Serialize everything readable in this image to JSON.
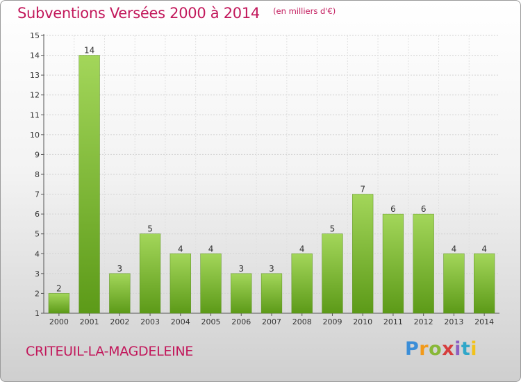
{
  "title": "Subventions Versées 2000 à 2014",
  "subtitle": "(en milliers d'€)",
  "commune": "CRITEUIL-LA-MAGDELEINE",
  "logo_text": "Proxiti",
  "colors": {
    "accent": "#c2185b",
    "bar_light": "#a3d65a",
    "bar_dark": "#5c9a18"
  },
  "chart_data": {
    "type": "bar",
    "categories": [
      "2000",
      "2001",
      "2002",
      "2003",
      "2004",
      "2005",
      "2006",
      "2007",
      "2008",
      "2009",
      "2010",
      "2011",
      "2012",
      "2013",
      "2014"
    ],
    "values": [
      2,
      14,
      3,
      5,
      4,
      4,
      3,
      3,
      4,
      5,
      7,
      6,
      6,
      4,
      4
    ],
    "title": "Subventions Versées 2000 à 2014",
    "ylabel": "(en milliers d'€)",
    "ylim": [
      1,
      15
    ],
    "yticks": [
      1,
      2,
      3,
      4,
      5,
      6,
      7,
      8,
      9,
      10,
      11,
      12,
      13,
      14,
      15
    ],
    "grid": true,
    "legend": "none"
  }
}
